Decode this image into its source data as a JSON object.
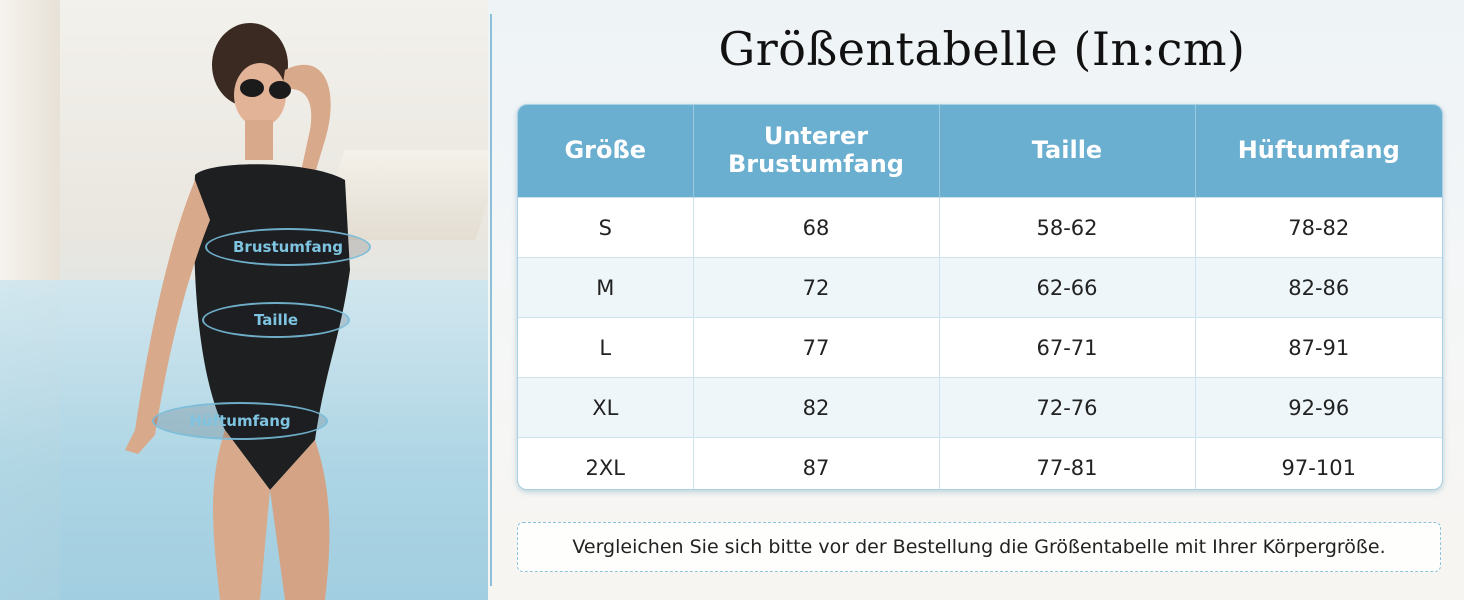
{
  "title": "Größentabelle (In:cm)",
  "figure_labels": {
    "bust": "Brustumfang",
    "waist": "Taille",
    "hip": "Hüftumfang"
  },
  "table": {
    "headers": [
      "Größe",
      "Unterer Brustumfang",
      "Taille",
      "Hüftumfang"
    ],
    "rows": [
      [
        "S",
        "68",
        "58-62",
        "78-82"
      ],
      [
        "M",
        "72",
        "62-66",
        "82-86"
      ],
      [
        "L",
        "77",
        "67-71",
        "87-91"
      ],
      [
        "XL",
        "82",
        "72-76",
        "92-96"
      ],
      [
        "2XL",
        "87",
        "77-81",
        "97-101"
      ]
    ]
  },
  "note": "Vergleichen Sie sich bitte vor der Bestellung die Größentabelle mit Ihrer Körpergröße.",
  "colors": {
    "header_bg": "#6aaed0",
    "label_text": "#7ec3e0",
    "divider": "#8dc0d8"
  }
}
